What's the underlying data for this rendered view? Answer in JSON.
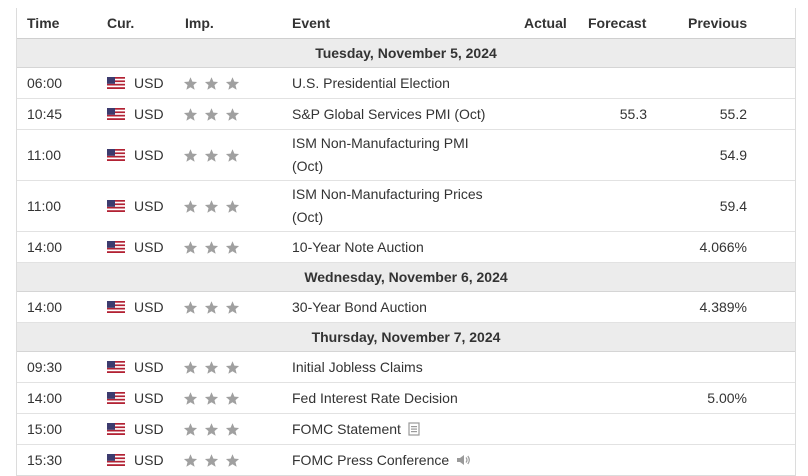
{
  "header": {
    "time": "Time",
    "currency": "Cur.",
    "importance": "Imp.",
    "event": "Event",
    "actual": "Actual",
    "forecast": "Forecast",
    "previous": "Previous"
  },
  "colors": {
    "star": "#a0a0a0",
    "section_bg": "#ececec",
    "border": "#dcdcdc"
  },
  "icons": {
    "flag": "us-flag-icon",
    "star": "star-icon",
    "document": "document-icon",
    "speaker": "speaker-icon"
  },
  "sections": [
    {
      "date": "Tuesday, November 5, 2024",
      "rows": [
        {
          "time": "06:00",
          "currency": "USD",
          "event_line1": "U.S. Presidential Election",
          "event_line2": "",
          "actual": "",
          "forecast": "",
          "previous": ""
        },
        {
          "time": "10:45",
          "currency": "USD",
          "event_line1": "S&P Global Services PMI (Oct)",
          "event_line2": "",
          "actual": "",
          "forecast": "55.3",
          "previous": "55.2"
        },
        {
          "time": "11:00",
          "currency": "USD",
          "event_line1": "ISM Non-Manufacturing PMI",
          "event_line2": "(Oct)",
          "actual": "",
          "forecast": "",
          "previous": "54.9"
        },
        {
          "time": "11:00",
          "currency": "USD",
          "event_line1": "ISM Non-Manufacturing Prices",
          "event_line2": "(Oct)",
          "actual": "",
          "forecast": "",
          "previous": "59.4"
        },
        {
          "time": "14:00",
          "currency": "USD",
          "event_line1": "10-Year Note Auction",
          "event_line2": "",
          "actual": "",
          "forecast": "",
          "previous": "4.066%"
        }
      ]
    },
    {
      "date": "Wednesday, November 6, 2024",
      "rows": [
        {
          "time": "14:00",
          "currency": "USD",
          "event_line1": "30-Year Bond Auction",
          "event_line2": "",
          "actual": "",
          "forecast": "",
          "previous": "4.389%"
        }
      ]
    },
    {
      "date": "Thursday, November 7, 2024",
      "rows": [
        {
          "time": "09:30",
          "currency": "USD",
          "event_line1": "Initial Jobless Claims",
          "event_line2": "",
          "actual": "",
          "forecast": "",
          "previous": ""
        },
        {
          "time": "14:00",
          "currency": "USD",
          "event_line1": "Fed Interest Rate Decision",
          "event_line2": "",
          "actual": "",
          "forecast": "",
          "previous": "5.00%"
        },
        {
          "time": "15:00",
          "currency": "USD",
          "event_line1": "FOMC Statement",
          "event_line2": "",
          "actual": "",
          "forecast": "",
          "previous": "",
          "icon": "document-icon"
        },
        {
          "time": "15:30",
          "currency": "USD",
          "event_line1": "FOMC Press Conference",
          "event_line2": "",
          "actual": "",
          "forecast": "",
          "previous": "",
          "icon": "speaker-icon"
        }
      ]
    }
  ]
}
